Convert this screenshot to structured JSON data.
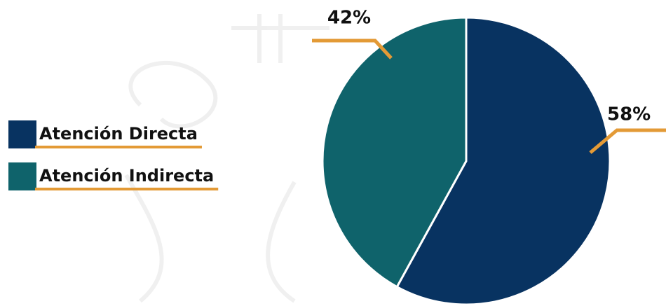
{
  "chart_data": {
    "type": "pie",
    "categories": [
      "Atención Directa",
      "Atención Indirecta"
    ],
    "values": [
      58,
      42
    ],
    "value_labels": [
      "58%",
      "42%"
    ],
    "colors": [
      "#083361",
      "#0f636b"
    ]
  }
}
